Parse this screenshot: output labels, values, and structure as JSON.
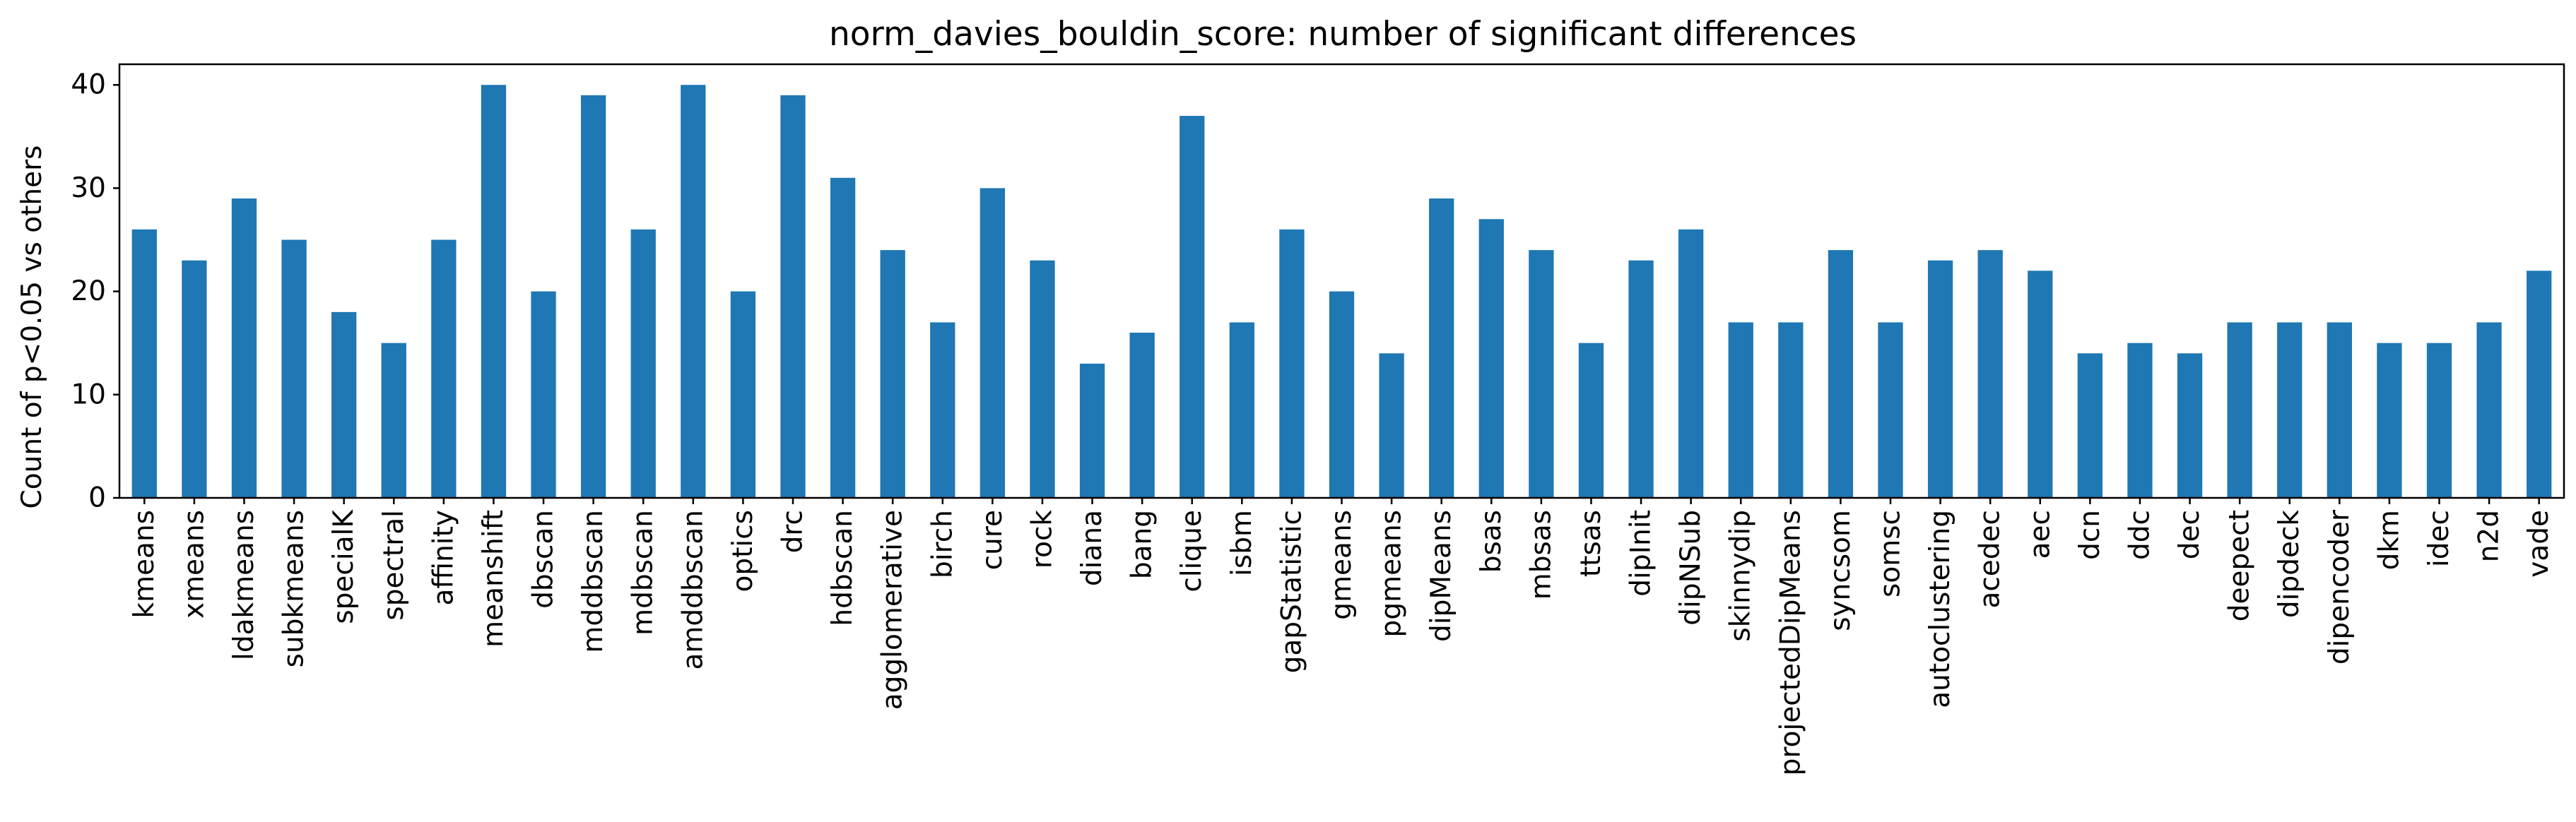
{
  "chart_data": {
    "type": "bar",
    "title": "norm_davies_bouldin_score: number of significant differences",
    "xlabel": "",
    "ylabel": "Count of p<0.05 vs others",
    "ylim": [
      0,
      42
    ],
    "yticks": [
      0,
      10,
      20,
      30,
      40
    ],
    "grid": false,
    "legend": "none",
    "bar_color": "#1f77b4",
    "categories": [
      "kmeans",
      "xmeans",
      "ldakmeans",
      "subkmeans",
      "specialK",
      "spectral",
      "affinity",
      "meanshift",
      "dbscan",
      "mddbscan",
      "mdbscan",
      "amddbscan",
      "optics",
      "drc",
      "hdbscan",
      "agglomerative",
      "birch",
      "cure",
      "rock",
      "diana",
      "bang",
      "clique",
      "isbm",
      "gapStatistic",
      "gmeans",
      "pgmeans",
      "dipMeans",
      "bsas",
      "mbsas",
      "ttsas",
      "dipInit",
      "dipNSub",
      "skinnydip",
      "projectedDipMeans",
      "syncsom",
      "somsc",
      "autoclustering",
      "acedec",
      "aec",
      "dcn",
      "ddc",
      "dec",
      "deepect",
      "dipdeck",
      "dipencoder",
      "dkm",
      "idec",
      "n2d",
      "vade"
    ],
    "values": [
      26,
      23,
      29,
      25,
      18,
      15,
      25,
      40,
      20,
      39,
      26,
      40,
      20,
      39,
      31,
      24,
      17,
      30,
      23,
      13,
      16,
      37,
      17,
      26,
      20,
      14,
      29,
      27,
      24,
      15,
      23,
      26,
      17,
      17,
      24,
      17,
      23,
      24,
      22,
      14,
      15,
      14,
      17,
      17,
      17,
      15,
      15,
      17,
      22
    ]
  }
}
